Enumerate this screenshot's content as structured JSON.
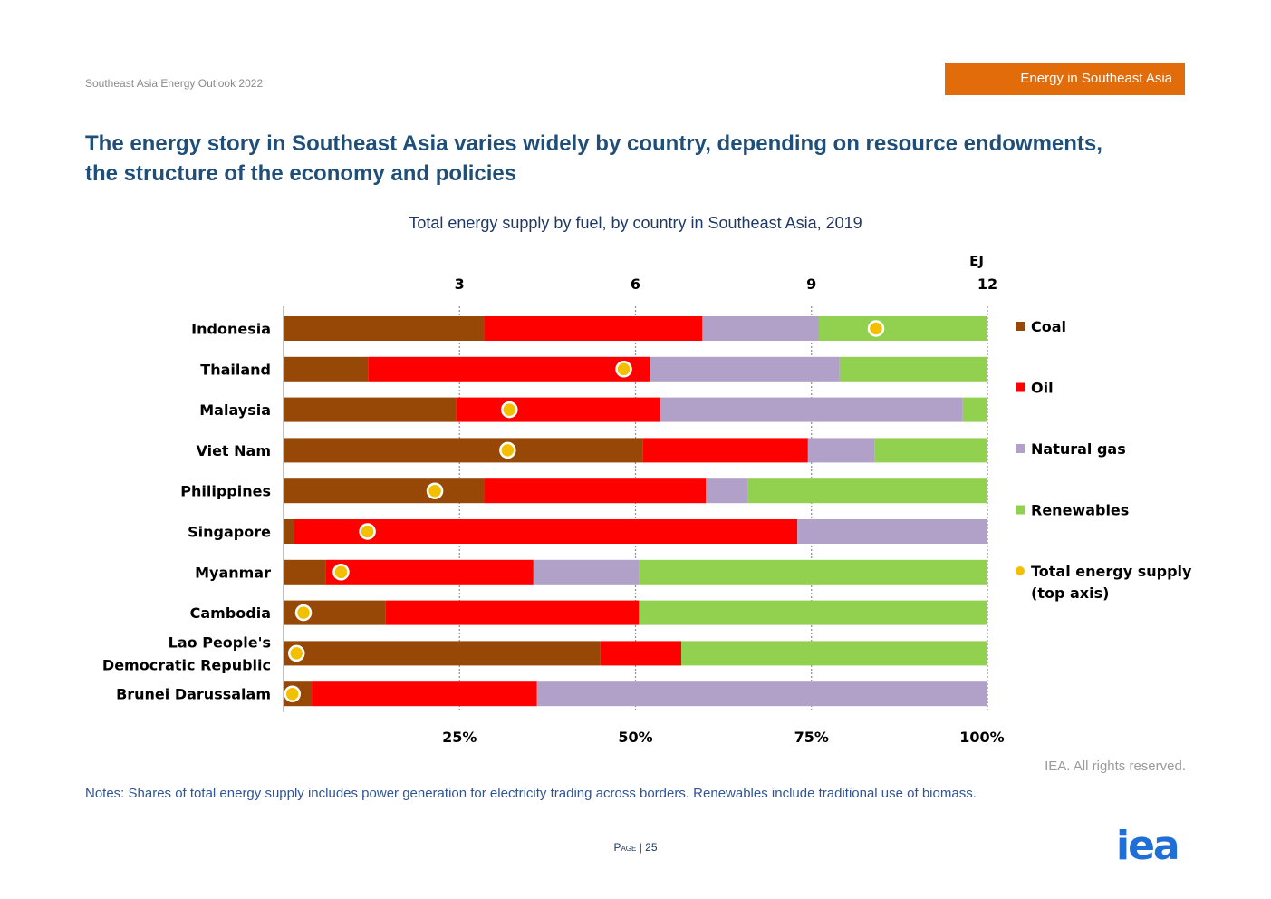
{
  "header": {
    "doc_label": "Southeast Asia Energy Outlook 2022",
    "section_tag": "Energy in Southeast Asia",
    "headline": "The energy story in Southeast Asia varies widely by country, depending on resource endowments, the structure of the economy and policies"
  },
  "chart_data": {
    "type": "bar",
    "orientation": "horizontal",
    "stacked": true,
    "title": "Total energy supply by fuel, by country in Southeast Asia, 2019",
    "categories": [
      "Indonesia",
      "Thailand",
      "Malaysia",
      "Viet Nam",
      "Philippines",
      "Singapore",
      "Myanmar",
      "Cambodia",
      "Lao People's Democratic Republic",
      "Brunei Darussalam"
    ],
    "category_lines": [
      [
        "Indonesia"
      ],
      [
        "Thailand"
      ],
      [
        "Malaysia"
      ],
      [
        "Viet Nam"
      ],
      [
        "Philippines"
      ],
      [
        "Singapore"
      ],
      [
        "Myanmar"
      ],
      [
        "Cambodia"
      ],
      [
        "Lao People's",
        "Democratic Republic"
      ],
      [
        "Brunei Darussalam"
      ]
    ],
    "series": [
      {
        "name": "Coal",
        "color": "#974706",
        "values": [
          28.5,
          12,
          24.5,
          51,
          28.5,
          1.5,
          6,
          14.5,
          45,
          4
        ]
      },
      {
        "name": "Oil",
        "color": "#ff0000",
        "values": [
          31,
          40,
          29,
          23.5,
          31.5,
          71.5,
          29.5,
          36,
          11.5,
          32
        ]
      },
      {
        "name": "Natural gas",
        "color": "#b1a0c7",
        "values": [
          16.5,
          27,
          43,
          9.5,
          6,
          27,
          15,
          0,
          0,
          64
        ]
      },
      {
        "name": "Renewables",
        "color": "#92d050",
        "values": [
          24,
          21,
          3.5,
          16,
          34,
          0,
          49.5,
          49.5,
          43.5,
          0
        ]
      }
    ],
    "total_supply": {
      "name": "Total energy supply (top axis)",
      "name_lines": [
        "Total energy supply",
        "(top axis)"
      ],
      "unit": "EJ",
      "color": "#f2c000",
      "values": [
        10.1,
        5.8,
        3.85,
        3.82,
        2.58,
        1.43,
        0.98,
        0.34,
        0.22,
        0.15
      ]
    },
    "x_axis_bottom": {
      "range": [
        0,
        100
      ],
      "ticks": [
        25,
        50,
        75,
        100
      ],
      "tick_labels": [
        "25%",
        "50%",
        "75%",
        "100%"
      ]
    },
    "x_axis_top": {
      "unit_label": "EJ",
      "range": [
        0,
        12
      ],
      "ticks": [
        3,
        6,
        9,
        12
      ],
      "tick_labels": [
        "3",
        "6",
        "9",
        "12"
      ]
    },
    "grid": true,
    "legend_position": "right"
  },
  "footer": {
    "source": "IEA. All rights reserved.",
    "notes": "Notes: Shares of total energy supply includes power generation for electricity trading across borders. Renewables include traditional use of biomass.",
    "page_word": "Page",
    "page_sep": "|",
    "page_number": "25",
    "logo_text": "iea"
  }
}
